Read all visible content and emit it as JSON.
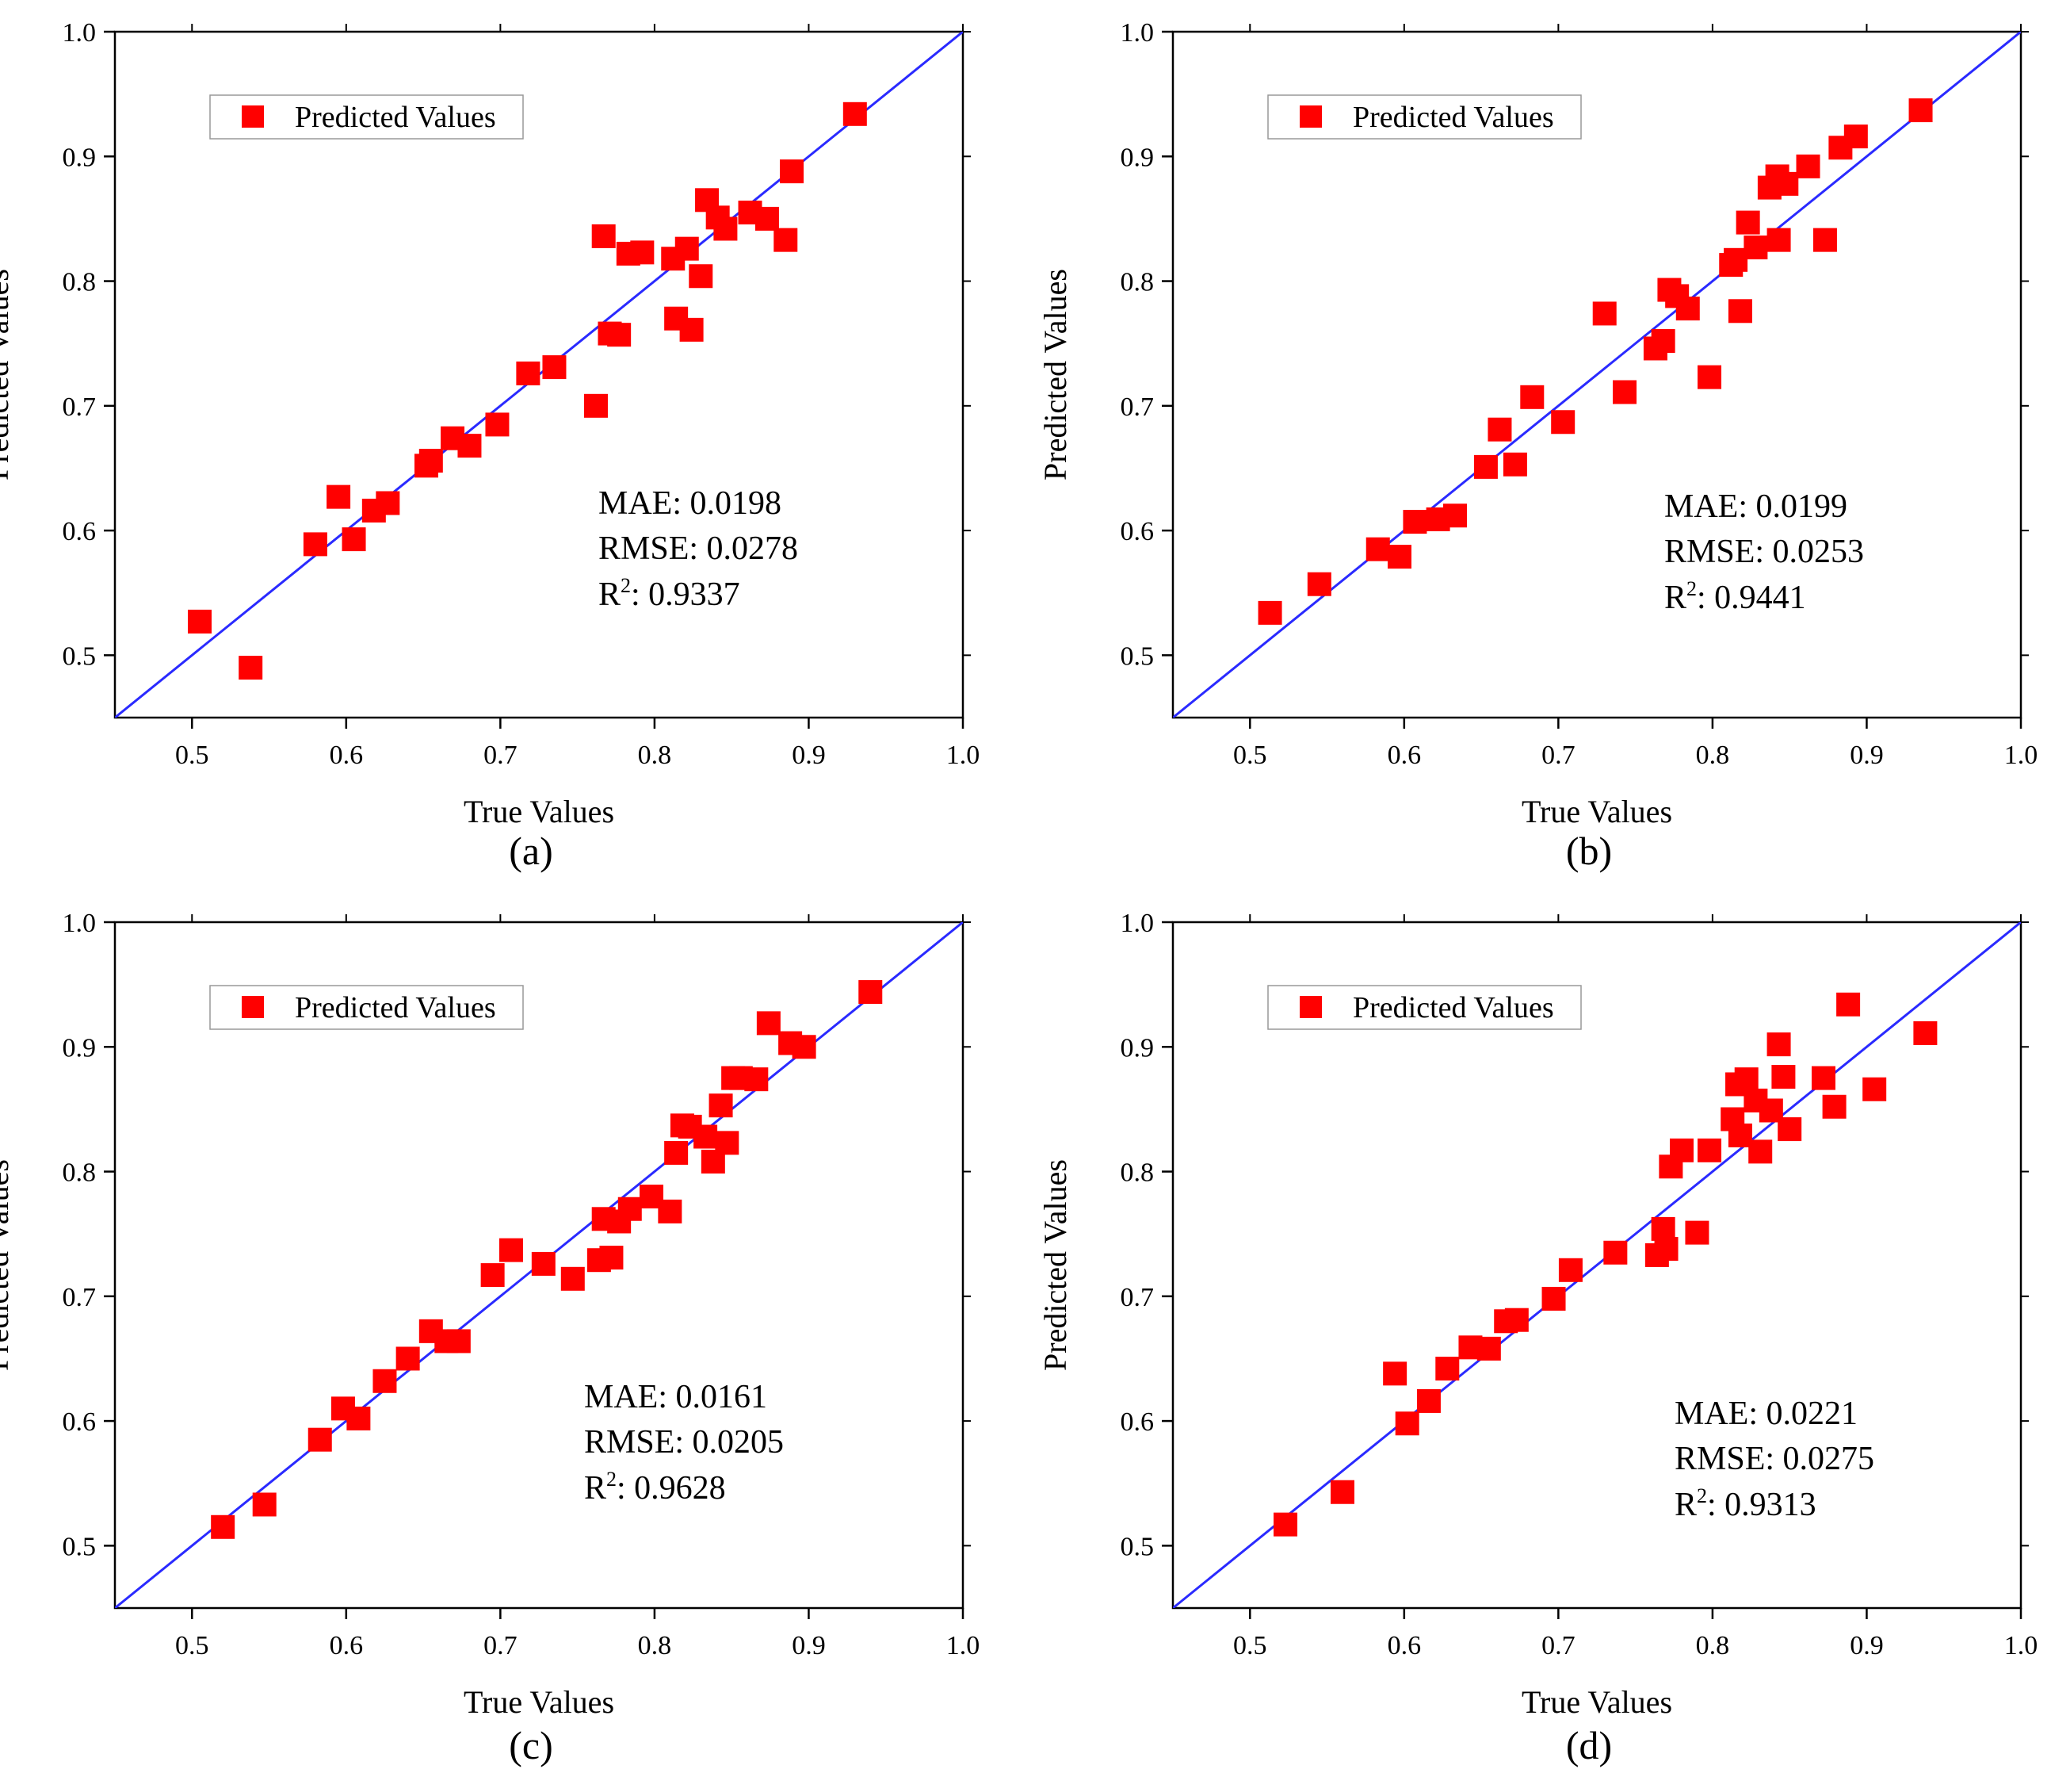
{
  "colors": {
    "marker": "#ff0000",
    "reference_line": "#2a2aff",
    "axis": "#000000",
    "background": "#ffffff"
  },
  "chart_data": [
    {
      "type": "scatter",
      "caption": "(a)",
      "xlabel": "True Values",
      "ylabel": "Predicted Values",
      "xlim": [
        0.45,
        1.0
      ],
      "ylim": [
        0.45,
        1.0
      ],
      "xticks": [
        "0.5",
        "0.6",
        "0.7",
        "0.8",
        "0.9",
        "1.0"
      ],
      "yticks": [
        "0.5",
        "0.6",
        "0.7",
        "0.8",
        "0.9",
        "1.0"
      ],
      "legend": "Predicted Values",
      "legend_position": "top-left",
      "reference_line": "y = x",
      "metrics": {
        "mae": "MAE: 0.0198",
        "rmse": "RMSE: 0.0278",
        "r2_label": "R",
        "r2_value": ": 0.9337"
      },
      "x": [
        0.505,
        0.538,
        0.58,
        0.595,
        0.605,
        0.618,
        0.627,
        0.652,
        0.655,
        0.669,
        0.68,
        0.698,
        0.718,
        0.735,
        0.762,
        0.767,
        0.771,
        0.777,
        0.783,
        0.792,
        0.812,
        0.814,
        0.821,
        0.824,
        0.83,
        0.834,
        0.841,
        0.846,
        0.862,
        0.873,
        0.885,
        0.889,
        0.93
      ],
      "y": [
        0.527,
        0.49,
        0.589,
        0.627,
        0.593,
        0.616,
        0.622,
        0.652,
        0.656,
        0.674,
        0.668,
        0.685,
        0.726,
        0.731,
        0.7,
        0.836,
        0.758,
        0.757,
        0.822,
        0.823,
        0.818,
        0.77,
        0.826,
        0.761,
        0.804,
        0.865,
        0.851,
        0.842,
        0.855,
        0.85,
        0.833,
        0.888,
        0.934
      ]
    },
    {
      "type": "scatter",
      "caption": "(b)",
      "xlabel": "True Values",
      "ylabel": "Predicted Values",
      "xlim": [
        0.45,
        1.0
      ],
      "ylim": [
        0.45,
        1.0
      ],
      "xticks": [
        "0.5",
        "0.6",
        "0.7",
        "0.8",
        "0.9",
        "1.0"
      ],
      "yticks": [
        "0.5",
        "0.6",
        "0.7",
        "0.8",
        "0.9",
        "1.0"
      ],
      "legend": "Predicted Values",
      "legend_position": "top-left",
      "reference_line": "y = x",
      "metrics": {
        "mae": "MAE: 0.0199",
        "rmse": "RMSE: 0.0253",
        "r2_label": "R",
        "r2_value": ": 0.9441"
      },
      "x": [
        0.513,
        0.545,
        0.583,
        0.597,
        0.607,
        0.622,
        0.633,
        0.653,
        0.662,
        0.672,
        0.683,
        0.703,
        0.73,
        0.743,
        0.763,
        0.768,
        0.772,
        0.777,
        0.784,
        0.798,
        0.812,
        0.815,
        0.818,
        0.823,
        0.828,
        0.837,
        0.842,
        0.843,
        0.848,
        0.862,
        0.873,
        0.883,
        0.893,
        0.935
      ],
      "y": [
        0.534,
        0.557,
        0.585,
        0.579,
        0.607,
        0.609,
        0.612,
        0.651,
        0.681,
        0.653,
        0.707,
        0.687,
        0.774,
        0.711,
        0.746,
        0.752,
        0.793,
        0.788,
        0.778,
        0.723,
        0.813,
        0.817,
        0.776,
        0.847,
        0.827,
        0.875,
        0.884,
        0.833,
        0.878,
        0.892,
        0.833,
        0.907,
        0.916,
        0.937
      ]
    },
    {
      "type": "scatter",
      "caption": "(c)",
      "xlabel": "True Values",
      "ylabel": "Predicted Values",
      "xlim": [
        0.45,
        1.0
      ],
      "ylim": [
        0.45,
        1.0
      ],
      "xticks": [
        "0.5",
        "0.6",
        "0.7",
        "0.8",
        "0.9",
        "1.0"
      ],
      "yticks": [
        "0.5",
        "0.6",
        "0.7",
        "0.8",
        "0.9",
        "1.0"
      ],
      "legend": "Predicted Values",
      "legend_position": "top-left",
      "reference_line": "y = x",
      "metrics": {
        "mae": "MAE: 0.0161",
        "rmse": "RMSE: 0.0205",
        "r2_label": "R",
        "r2_value": ": 0.9628"
      },
      "x": [
        0.52,
        0.547,
        0.583,
        0.598,
        0.608,
        0.625,
        0.64,
        0.655,
        0.665,
        0.673,
        0.695,
        0.707,
        0.728,
        0.747,
        0.764,
        0.767,
        0.772,
        0.777,
        0.784,
        0.798,
        0.81,
        0.814,
        0.818,
        0.823,
        0.833,
        0.838,
        0.843,
        0.847,
        0.851,
        0.856,
        0.866,
        0.874,
        0.888,
        0.897,
        0.94
      ],
      "y": [
        0.515,
        0.533,
        0.585,
        0.61,
        0.602,
        0.632,
        0.65,
        0.672,
        0.664,
        0.664,
        0.717,
        0.737,
        0.726,
        0.714,
        0.729,
        0.762,
        0.731,
        0.76,
        0.77,
        0.78,
        0.768,
        0.815,
        0.837,
        0.836,
        0.828,
        0.808,
        0.853,
        0.823,
        0.875,
        0.875,
        0.874,
        0.919,
        0.903,
        0.9,
        0.944
      ]
    },
    {
      "type": "scatter",
      "caption": "(d)",
      "xlabel": "True Values",
      "ylabel": "Predicted Values",
      "xlim": [
        0.45,
        1.0
      ],
      "ylim": [
        0.45,
        1.0
      ],
      "xticks": [
        "0.5",
        "0.6",
        "0.7",
        "0.8",
        "0.9",
        "1.0"
      ],
      "yticks": [
        "0.5",
        "0.6",
        "0.7",
        "0.8",
        "0.9",
        "1.0"
      ],
      "legend": "Predicted Values",
      "legend_position": "top-left",
      "reference_line": "y = x",
      "metrics": {
        "mae": "MAE: 0.0221",
        "rmse": "RMSE: 0.0275",
        "r2_label": "R",
        "r2_value": ": 0.9313"
      },
      "x": [
        0.523,
        0.56,
        0.594,
        0.602,
        0.616,
        0.628,
        0.643,
        0.655,
        0.666,
        0.673,
        0.697,
        0.708,
        0.737,
        0.764,
        0.768,
        0.77,
        0.773,
        0.78,
        0.79,
        0.798,
        0.813,
        0.816,
        0.818,
        0.822,
        0.828,
        0.831,
        0.838,
        0.843,
        0.846,
        0.85,
        0.872,
        0.879,
        0.888,
        0.905,
        0.938
      ],
      "y": [
        0.517,
        0.543,
        0.638,
        0.598,
        0.616,
        0.642,
        0.659,
        0.658,
        0.68,
        0.681,
        0.698,
        0.721,
        0.735,
        0.733,
        0.754,
        0.738,
        0.804,
        0.817,
        0.751,
        0.817,
        0.842,
        0.87,
        0.829,
        0.874,
        0.857,
        0.816,
        0.849,
        0.902,
        0.876,
        0.834,
        0.875,
        0.852,
        0.934,
        0.866,
        0.911
      ]
    }
  ]
}
